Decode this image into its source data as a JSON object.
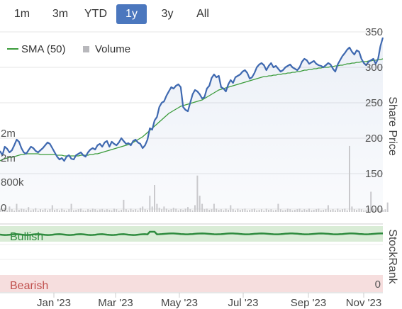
{
  "range_selector": {
    "buttons": [
      {
        "label": "1m",
        "active": false
      },
      {
        "label": "3m",
        "active": false
      },
      {
        "label": "YTD",
        "active": false
      },
      {
        "label": "1y",
        "active": true
      },
      {
        "label": "3y",
        "active": false
      },
      {
        "label": "All",
        "active": false
      }
    ]
  },
  "colors": {
    "price": "#3f69b0",
    "sma": "#3a9b3a",
    "volume": "#c9c9cc",
    "bullish_band": "#d9ecd6",
    "bullish_line": "#2e8b3e",
    "bearish_band": "#f6dede",
    "bearish_text": "#c0504d",
    "active_button": "#4b77be"
  },
  "chart_data": {
    "type": "line",
    "x_tick_labels": [
      "Jan '23",
      "Mar '23",
      "May '23",
      "Jul '23",
      "Sep '23",
      "Nov '23"
    ],
    "y_axis": {
      "label": "Share Price",
      "ticks": [
        100,
        150,
        200,
        250,
        300,
        350
      ],
      "ylim": [
        100,
        350
      ]
    },
    "volume_axis": {
      "ticks": [
        "0",
        "800k",
        "2m",
        "2m"
      ]
    },
    "legend": [
      "SMA (50)",
      "Volume"
    ],
    "series": [
      {
        "name": "Share Price",
        "values": [
          182,
          176,
          188,
          185,
          180,
          183,
          190,
          198,
          195,
          186,
          180,
          178,
          183,
          188,
          186,
          182,
          180,
          183,
          186,
          190,
          194,
          192,
          186,
          180,
          174,
          170,
          172,
          168,
          174,
          176,
          171,
          170,
          176,
          178,
          180,
          176,
          174,
          180,
          184,
          186,
          184,
          190,
          192,
          188,
          194,
          196,
          188,
          195,
          192,
          190,
          194,
          200,
          196,
          192,
          193,
          190,
          196,
          198,
          194,
          192,
          186,
          190,
          198,
          214,
          212,
          225,
          230,
          244,
          250,
          252,
          260,
          266,
          272,
          270,
          274,
          276,
          272,
          244,
          240,
          238,
          250,
          262,
          268,
          266,
          262,
          256,
          258,
          270,
          274,
          285,
          290,
          286,
          288,
          272,
          270,
          266,
          276,
          282,
          278,
          286,
          288,
          290,
          294,
          296,
          292,
          284,
          286,
          292,
          300,
          304,
          306,
          303,
          296,
          302,
          306,
          300,
          302,
          298,
          294,
          296,
          300,
          302,
          304,
          300,
          298,
          296,
          300,
          308,
          312,
          310,
          305,
          307,
          309,
          305,
          303,
          302,
          300,
          303,
          306,
          304,
          298,
          294,
          304,
          310,
          316,
          320,
          325,
          328,
          322,
          318,
          324,
          322,
          312,
          306,
          303,
          308,
          310,
          312,
          305,
          312,
          330,
          342
        ],
        "color": "#3f69b0"
      },
      {
        "name": "SMA (50)",
        "values": [
          168,
          170,
          171,
          172,
          173,
          173,
          174,
          175,
          176,
          177,
          177,
          178,
          178,
          178,
          178,
          178,
          178,
          177,
          177,
          177,
          177,
          177,
          177,
          177,
          176,
          176,
          176,
          175,
          175,
          175,
          175,
          175,
          175,
          175,
          176,
          176,
          176,
          176,
          177,
          177,
          178,
          178,
          179,
          180,
          181,
          182,
          183,
          184,
          185,
          186,
          187,
          188,
          189,
          190,
          191,
          192,
          194,
          196,
          198,
          200,
          202,
          205,
          208,
          211,
          214,
          217,
          220,
          223,
          226,
          229,
          232,
          235,
          237,
          239,
          241,
          243,
          245,
          246,
          247,
          248,
          249,
          250,
          251,
          252,
          253,
          254,
          256,
          258,
          260,
          262,
          264,
          266,
          268,
          269,
          270,
          271,
          272,
          273,
          274,
          275,
          276,
          277,
          278,
          279,
          280,
          281,
          282,
          283,
          284,
          285,
          286,
          287,
          287,
          288,
          288,
          289,
          289,
          290,
          290,
          291,
          291,
          292,
          292,
          293,
          293,
          294,
          294,
          295,
          296,
          296,
          297,
          297,
          298,
          298,
          299,
          299,
          300,
          300,
          300,
          301,
          301,
          302,
          302,
          303,
          303,
          304,
          305,
          305,
          306,
          306,
          307,
          307,
          308,
          308,
          308,
          309,
          309,
          310,
          310,
          311,
          311,
          312
        ],
        "color": "#3a9b3a"
      },
      {
        "name": "Volume",
        "values": [
          0.12,
          0.08,
          0.15,
          0.06,
          0.2,
          0.1,
          0.05,
          0.3,
          0.08,
          0.12,
          0.1,
          0.07,
          0.18,
          0.06,
          0.09,
          0.14,
          0.05,
          0.1,
          0.08,
          0.12,
          0.06,
          0.1,
          0.25,
          0.08,
          0.1,
          0.06,
          0.12,
          0.08,
          0.05,
          0.1,
          0.3,
          0.06,
          0.08,
          0.1,
          0.12,
          0.06,
          0.05,
          0.1,
          0.08,
          0.12,
          0.1,
          0.06,
          0.09,
          0.11,
          0.07,
          0.1,
          0.08,
          0.06,
          0.12,
          0.1,
          0.05,
          0.08,
          0.45,
          0.1,
          0.06,
          0.12,
          0.08,
          0.1,
          0.06,
          0.15,
          0.2,
          0.1,
          0.08,
          0.6,
          0.2,
          1.0,
          0.3,
          0.15,
          0.1,
          0.2,
          0.12,
          0.08,
          0.1,
          0.15,
          0.12,
          0.06,
          0.1,
          0.08,
          0.12,
          0.18,
          0.1,
          0.06,
          0.25,
          1.35,
          0.6,
          0.3,
          0.1,
          0.12,
          0.08,
          0.1,
          0.3,
          0.12,
          0.08,
          0.1,
          0.06,
          0.12,
          0.08,
          0.25,
          0.1,
          0.06,
          0.12,
          0.08,
          0.1,
          0.12,
          0.06,
          0.08,
          0.1,
          0.12,
          0.06,
          0.08,
          0.1,
          0.05,
          0.12,
          0.08,
          0.1,
          0.06,
          0.08,
          0.3,
          0.1,
          0.06,
          0.08,
          0.12,
          0.1,
          0.06,
          0.08,
          0.1,
          0.12,
          0.06,
          0.1,
          0.08,
          0.12,
          0.06,
          0.08,
          0.1,
          0.12,
          0.06,
          0.08,
          0.1,
          0.25,
          0.08,
          0.1,
          0.06,
          0.12,
          0.08,
          0.1,
          0.12,
          0.06,
          2.45,
          0.2,
          0.1,
          0.08,
          0.12,
          0.1,
          0.06,
          0.08,
          0.1,
          0.75,
          0.12,
          0.08,
          0.1,
          0.06,
          0.08,
          0.1,
          0.35
        ],
        "color": "#c9c9cc"
      }
    ],
    "stockrank": {
      "label": "StockRank",
      "bullish_label": "Bullish",
      "bearish_label": "Bearish",
      "bearish_value": "0",
      "status": "Bullish"
    }
  }
}
